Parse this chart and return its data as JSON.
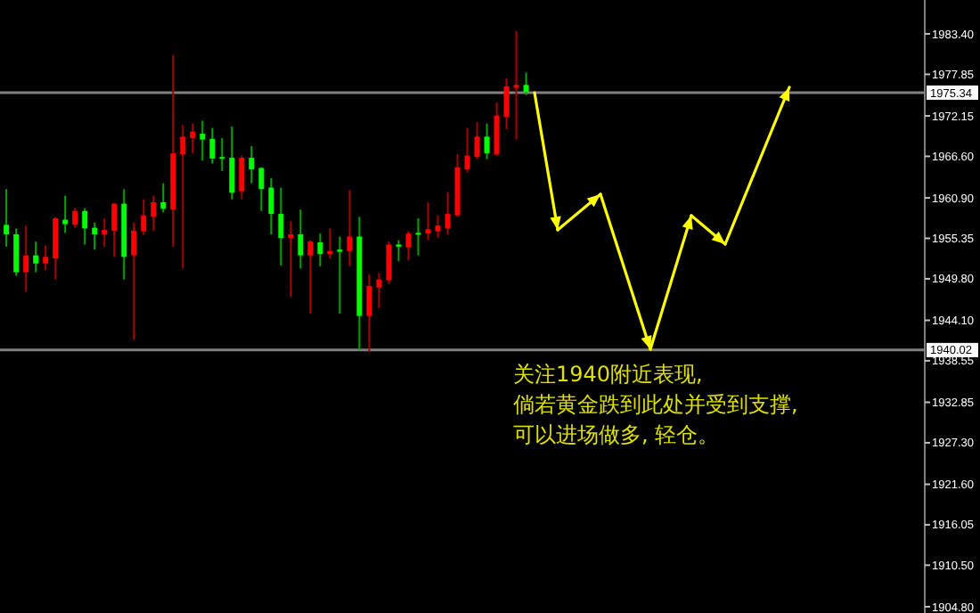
{
  "chart_data": {
    "type": "candlestick",
    "tick_labels": "y",
    "categories": [
      null,
      null,
      null,
      null,
      null,
      null,
      null,
      null,
      null,
      null,
      null,
      null,
      null,
      null,
      null,
      null,
      null,
      null,
      null,
      null,
      null,
      null,
      null,
      null,
      null,
      null,
      null,
      null,
      null,
      null,
      null,
      null,
      null,
      null,
      null,
      null,
      null,
      null,
      null,
      null,
      null,
      null,
      null,
      null,
      null,
      null,
      null,
      null,
      null,
      null,
      null,
      null,
      null,
      null,
      null,
      null,
      null,
      null,
      null,
      null,
      null,
      null,
      null,
      null,
      null,
      null,
      null,
      null,
      null,
      null,
      null,
      null,
      null,
      null,
      null,
      null,
      null,
      null,
      null,
      null,
      null,
      null,
      null,
      null,
      null,
      null,
      null,
      null,
      null,
      null,
      null,
      null,
      null,
      null
    ],
    "ohlc": [
      [
        1957.2,
        1962.1,
        1954.2,
        1955.9
      ],
      [
        1955.9,
        1956.7,
        1950.2,
        1950.7
      ],
      [
        1950.7,
        1957.1,
        1948.0,
        1953.0
      ],
      [
        1953.0,
        1954.9,
        1950.7,
        1951.9
      ],
      [
        1951.9,
        1954.4,
        1951.0,
        1952.8
      ],
      [
        1952.6,
        1958.3,
        1949.7,
        1958.1
      ],
      [
        1957.9,
        1961.2,
        1956.1,
        1957.3
      ],
      [
        1957.2,
        1959.5,
        1956.8,
        1959.1
      ],
      [
        1959.1,
        1959.5,
        1954.5,
        1956.7
      ],
      [
        1956.8,
        1957.5,
        1953.8,
        1955.9
      ],
      [
        1955.9,
        1958.1,
        1954.2,
        1956.5
      ],
      [
        1956.4,
        1960.2,
        1952.8,
        1960.1
      ],
      [
        1960.1,
        1962.1,
        1949.7,
        1952.8
      ],
      [
        1953.0,
        1957.5,
        1941.4,
        1956.4
      ],
      [
        1956.3,
        1960.7,
        1955.9,
        1958.5
      ],
      [
        1958.3,
        1961.2,
        1956.4,
        1960.3
      ],
      [
        1960.3,
        1962.9,
        1958.9,
        1959.4
      ],
      [
        1959.3,
        1980.5,
        1954.2,
        1967.0
      ],
      [
        1966.9,
        1970.9,
        1951.2,
        1969.3
      ],
      [
        1969.1,
        1971.1,
        1967.0,
        1970.0
      ],
      [
        1969.7,
        1971.5,
        1966.0,
        1968.9
      ],
      [
        1969.0,
        1970.5,
        1965.6,
        1966.3
      ],
      [
        1966.5,
        1969.1,
        1964.6,
        1966.3
      ],
      [
        1966.4,
        1970.7,
        1960.7,
        1961.6
      ],
      [
        1961.8,
        1966.7,
        1960.7,
        1966.4
      ],
      [
        1966.4,
        1968.0,
        1962.9,
        1964.8
      ],
      [
        1965.0,
        1965.1,
        1959.1,
        1962.1
      ],
      [
        1962.3,
        1963.6,
        1955.9,
        1958.7
      ],
      [
        1958.7,
        1962.3,
        1951.6,
        1955.4
      ],
      [
        1955.4,
        1957.7,
        1947.3,
        1955.9
      ],
      [
        1955.9,
        1959.3,
        1951.2,
        1953.0
      ],
      [
        1953.0,
        1955.1,
        1945.0,
        1954.9
      ],
      [
        1954.8,
        1956.0,
        1951.5,
        1953.2
      ],
      [
        1953.2,
        1956.7,
        1952.6,
        1953.6
      ],
      [
        1953.8,
        1955.6,
        1945.0,
        1953.5
      ],
      [
        1953.6,
        1962.0,
        1951.5,
        1955.6
      ],
      [
        1955.6,
        1958.3,
        1940.0,
        1944.7
      ],
      [
        1944.7,
        1950.4,
        1939.8,
        1948.8
      ],
      [
        1948.6,
        1950.6,
        1945.8,
        1949.7
      ],
      [
        1949.6,
        1954.9,
        1949.1,
        1954.5
      ],
      [
        1954.5,
        1955.1,
        1952.2,
        1954.2
      ],
      [
        1954.1,
        1956.3,
        1952.3,
        1956.0
      ],
      [
        1956.1,
        1958.1,
        1953.0,
        1955.9
      ],
      [
        1956.0,
        1960.3,
        1955.1,
        1956.6
      ],
      [
        1956.3,
        1958.5,
        1955.4,
        1957.1
      ],
      [
        1956.7,
        1961.7,
        1955.9,
        1958.7
      ],
      [
        1958.5,
        1966.9,
        1958.3,
        1965.1
      ],
      [
        1964.8,
        1970.5,
        1964.4,
        1966.7
      ],
      [
        1966.5,
        1971.3,
        1966.2,
        1969.3
      ],
      [
        1969.3,
        1971.1,
        1966.2,
        1967.0
      ],
      [
        1966.9,
        1974.0,
        1966.7,
        1972.2
      ],
      [
        1972.0,
        1977.3,
        1970.3,
        1976.2
      ],
      [
        1976.0,
        1983.8,
        1968.9,
        1976.4
      ],
      [
        1976.4,
        1978.1,
        1975.0,
        1975.4
      ],
      null,
      null,
      null,
      null,
      null,
      null,
      null,
      null,
      null,
      null,
      null,
      null,
      null,
      null,
      null,
      null,
      null,
      null,
      null,
      null,
      null,
      null,
      null,
      null,
      null,
      null,
      null,
      null,
      null,
      null,
      null,
      null,
      null,
      null,
      null,
      null,
      null,
      null,
      null,
      null
    ],
    "colors": [
      "#00ff00",
      "#00ff00",
      "#ff0000",
      "#00ff00",
      "#ff0000",
      "#ff0000",
      "#00ff00",
      "#ff0000",
      "#00ff00",
      "#00ff00",
      "#ff0000",
      "#ff0000",
      "#00ff00",
      "#ff0000",
      "#ff0000",
      "#ff0000",
      "#00ff00",
      "#ff0000",
      "#ff0000",
      "#ff0000",
      "#00ff00",
      "#00ff00",
      "#00ff00",
      "#00ff00",
      "#ff0000",
      "#00ff00",
      "#00ff00",
      "#00ff00",
      "#00ff00",
      "#ff0000",
      "#00ff00",
      "#ff0000",
      "#00ff00",
      "#ff0000",
      "#00ff00",
      "#ff0000",
      "#00ff00",
      "#ff0000",
      "#ff0000",
      "#ff0000",
      "#00ff00",
      "#ff0000",
      "#00ff00",
      "#ff0000",
      "#ff0000",
      "#ff0000",
      "#ff0000",
      "#ff0000",
      "#ff0000",
      "#00ff00",
      "#ff0000",
      "#ff0000",
      "#ff0000",
      "#00ff00",
      null,
      null,
      null,
      null,
      null,
      null,
      null,
      null,
      null,
      null,
      null,
      null,
      null,
      null,
      null,
      null,
      null,
      null,
      null,
      null,
      null,
      null,
      null,
      null,
      null,
      null,
      null,
      null,
      null,
      null,
      null,
      null,
      null,
      null,
      null,
      null,
      null,
      null,
      null,
      null
    ],
    "ylim": [
      1903.94,
      1988.05
    ],
    "yticks": [
      {
        "value": 1983.4,
        "label": "1983.40"
      },
      1977.85,
      1972.15,
      {
        "value": 1966.6,
        "label": "1966.60"
      },
      {
        "value": 1960.9,
        "label": "1960.90"
      },
      1955.35,
      {
        "value": 1949.8,
        "label": "1949.80"
      },
      {
        "value": 1944.1,
        "label": "1944.10"
      },
      1938.55,
      1932.85,
      {
        "value": 1927.3,
        "label": "1927.30"
      },
      {
        "value": 1921.6,
        "label": "1921.60"
      },
      1916.05,
      {
        "value": 1910.5,
        "label": "1910.50"
      },
      {
        "value": 1904.8,
        "label": "1904.80"
      }
    ],
    "ref_lines": [
      {
        "axis": "y",
        "value": 1975.34,
        "label": "1975.34",
        "color": "#808080"
      },
      {
        "axis": "y",
        "value": 1940.02,
        "label": "1940.02",
        "color": "#808080"
      }
    ],
    "annotations": [
      "关注1940附近表现,\n倘若黄金跌到此处并受到支撑,\n可以进场做多, 轻仓。"
    ]
  }
}
